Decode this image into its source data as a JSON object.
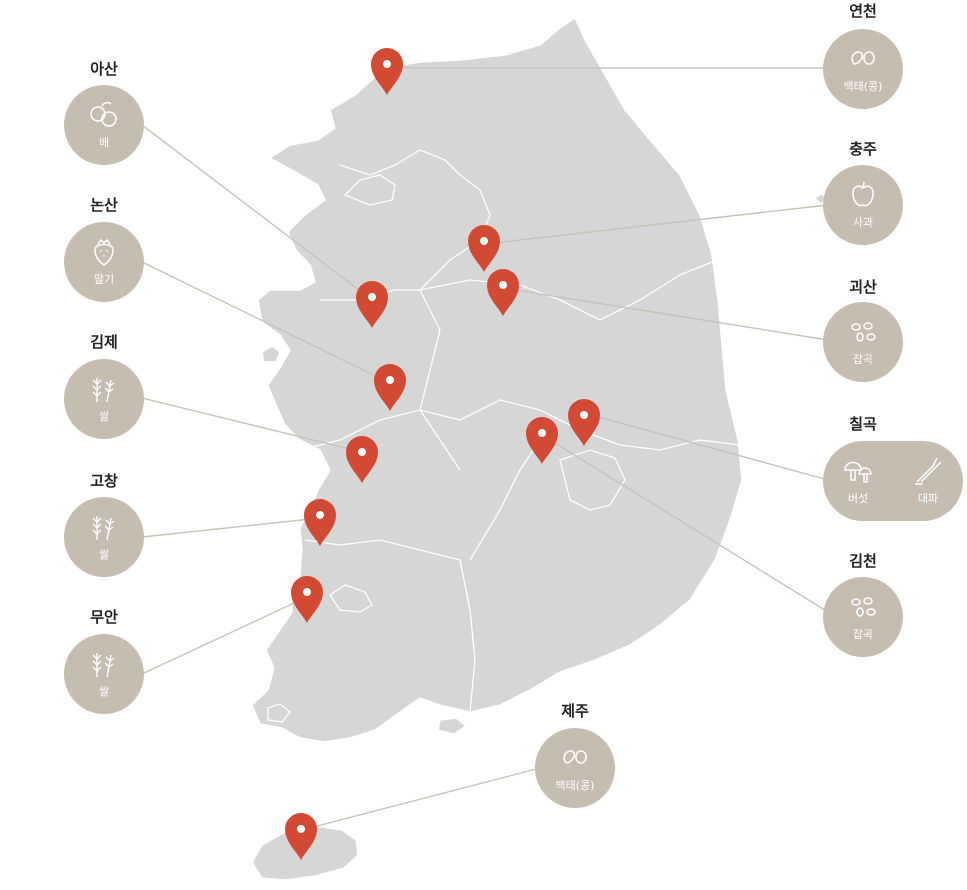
{
  "regions": {
    "yeoncheon": {
      "name": "연천",
      "crops": [
        "백태(콩)"
      ]
    },
    "chungju": {
      "name": "충주",
      "crops": [
        "사과"
      ]
    },
    "goesan": {
      "name": "괴산",
      "crops": [
        "잡곡"
      ]
    },
    "chilgok": {
      "name": "칠곡",
      "crops": [
        "버섯",
        "대파"
      ]
    },
    "gimcheon": {
      "name": "김천",
      "crops": [
        "잡곡"
      ]
    },
    "jeju": {
      "name": "제주",
      "crops": [
        "백태(콩)"
      ]
    },
    "asan": {
      "name": "아산",
      "crops": [
        "배"
      ]
    },
    "nonsan": {
      "name": "논산",
      "crops": [
        "딸기"
      ]
    },
    "gimje": {
      "name": "김제",
      "crops": [
        "쌀"
      ]
    },
    "gochang": {
      "name": "고창",
      "crops": [
        "쌀"
      ]
    },
    "muan": {
      "name": "무안",
      "crops": [
        "쌀"
      ]
    }
  },
  "colors": {
    "pin": "#d24a33",
    "land": "#d6d6d6",
    "badge": "#c5bdb0",
    "connector": "#c8c2b7"
  },
  "icons": {
    "yeoncheon": "bean-icon",
    "chungju": "apple-icon",
    "goesan": "grain-icon",
    "chilgok": [
      "mushroom-icon",
      "green-onion-icon"
    ],
    "gimcheon": "grain-icon",
    "jeju": "bean-icon",
    "asan": "pear-icon",
    "nonsan": "strawberry-icon",
    "gimje": "rice-icon",
    "gochang": "rice-icon",
    "muan": "rice-icon"
  }
}
